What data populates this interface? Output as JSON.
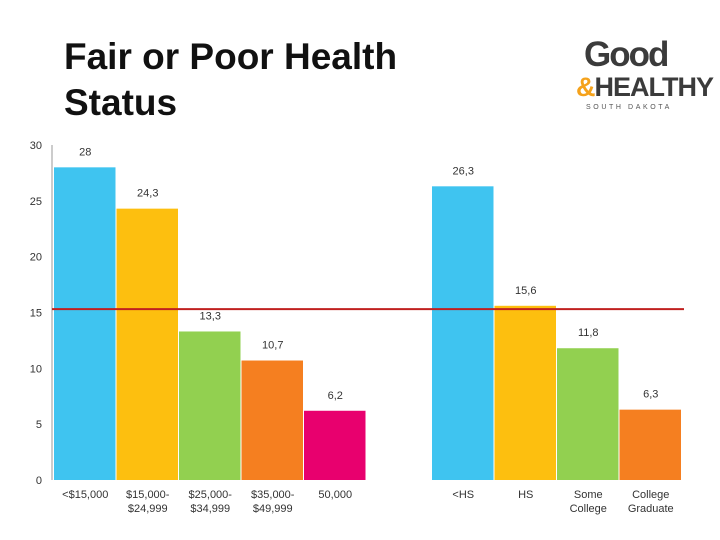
{
  "slide": {
    "title_line1": "Fair or Poor Health",
    "title_line2": "Status"
  },
  "logo": {
    "word_good": "Good",
    "amp": "&",
    "word_healthy": "HEALTHY",
    "subtitle": "SOUTH DAKOTA"
  },
  "chart_data": {
    "type": "bar",
    "ylim": [
      0,
      30
    ],
    "yticks": [
      0,
      5,
      10,
      15,
      20,
      25,
      30
    ],
    "grid": false,
    "reference_line": {
      "value": 15.3,
      "color": "#c0201f"
    },
    "groups": [
      {
        "categories": [
          [
            "<$15,000"
          ],
          [
            "$15,000-",
            "$24,999"
          ],
          [
            "$25,000-",
            "$34,999"
          ],
          [
            "$35,000-",
            "$49,999"
          ],
          [
            "50,000"
          ]
        ],
        "values": [
          28,
          24.3,
          13.3,
          10.7,
          6.2
        ],
        "labels": [
          "28",
          "24,3",
          "13,3",
          "10,7",
          "6,2"
        ],
        "colors": [
          "#3fc4f0",
          "#fdbf0f",
          "#92d050",
          "#f57f20",
          "#e8006e"
        ]
      },
      {
        "categories": [
          [
            "<HS"
          ],
          [
            "HS"
          ],
          [
            "Some",
            "College"
          ],
          [
            "College",
            "Graduate"
          ]
        ],
        "values": [
          26.3,
          15.6,
          11.8,
          6.3
        ],
        "labels": [
          "26,3",
          "15,6",
          "11,8",
          "6,3"
        ],
        "colors": [
          "#3fc4f0",
          "#fdbf0f",
          "#92d050",
          "#f57f20"
        ]
      }
    ]
  }
}
